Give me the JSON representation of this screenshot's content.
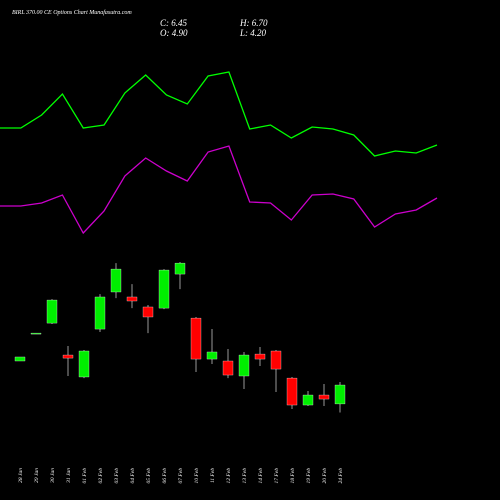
{
  "chart_data": [
    {
      "type": "candlestick",
      "title": "BIRL 370.00 CE Options Chart Munafasutra.com",
      "annotations": [
        "C: 6.45",
        "H: 6.70",
        "O: 4.90",
        "L: 4.20"
      ],
      "categories": [
        "28 Jan",
        "29 Jan",
        "30 Jan",
        "31 Jan",
        "01 Feb",
        "02 Feb",
        "03 Feb",
        "04 Feb",
        "05 Feb",
        "06 Feb",
        "07 Feb",
        "10 Feb",
        "11 Feb",
        "12 Feb",
        "13 Feb",
        "14 Feb",
        "17 Feb",
        "18 Feb",
        "19 Feb",
        "20 Feb",
        "24 Feb"
      ],
      "open": [
        8.42,
        10.67,
        11.53,
        8.91,
        7.11,
        11.04,
        14.08,
        13.67,
        12.85,
        12.76,
        15.55,
        11.94,
        8.58,
        8.42,
        7.19,
        8.99,
        9.24,
        7.02,
        4.81,
        5.63,
        4.9
      ],
      "close": [
        8.75,
        10.71,
        13.42,
        8.66,
        9.24,
        13.67,
        15.96,
        13.34,
        12.03,
        15.88,
        16.45,
        8.58,
        9.16,
        7.27,
        8.91,
        8.58,
        7.76,
        4.81,
        5.63,
        5.3,
        6.45
      ],
      "high": [
        8.75,
        10.71,
        13.5,
        9.65,
        9.32,
        13.91,
        16.45,
        14.73,
        13.01,
        15.96,
        16.54,
        12.03,
        11.04,
        9.4,
        9.16,
        9.57,
        9.32,
        7.11,
        5.96,
        6.53,
        6.7
      ],
      "low": [
        8.42,
        10.67,
        11.45,
        7.19,
        7.02,
        10.8,
        13.58,
        12.76,
        10.71,
        12.68,
        14.32,
        7.52,
        8.17,
        7.02,
        6.12,
        8.01,
        5.88,
        4.48,
        4.73,
        4.73,
        4.2
      ],
      "up_color": "#00ee00",
      "down_color": "#ff0000",
      "ylim": [
        3.5,
        19
      ]
    },
    {
      "type": "line",
      "categories": [
        null,
        null,
        null,
        null,
        null,
        null,
        null,
        null,
        null,
        null,
        null,
        null,
        null,
        null,
        null,
        null,
        null,
        null,
        null,
        null,
        null,
        null
      ],
      "series": [
        {
          "color": "#00ff00",
          "values": [
            122,
            122,
            135,
            156,
            122,
            125,
            157,
            175,
            155,
            146,
            174,
            178,
            121,
            125,
            112,
            123,
            121,
            115,
            94,
            99,
            97,
            105
          ]
        },
        {
          "color": "#cc00cc",
          "values": [
            44,
            44,
            47,
            55,
            17,
            39,
            74,
            92,
            79,
            69,
            98,
            104,
            48,
            47,
            30,
            55,
            56,
            51,
            23,
            36,
            40,
            52
          ]
        }
      ],
      "ylim": [
        0,
        250
      ]
    }
  ]
}
